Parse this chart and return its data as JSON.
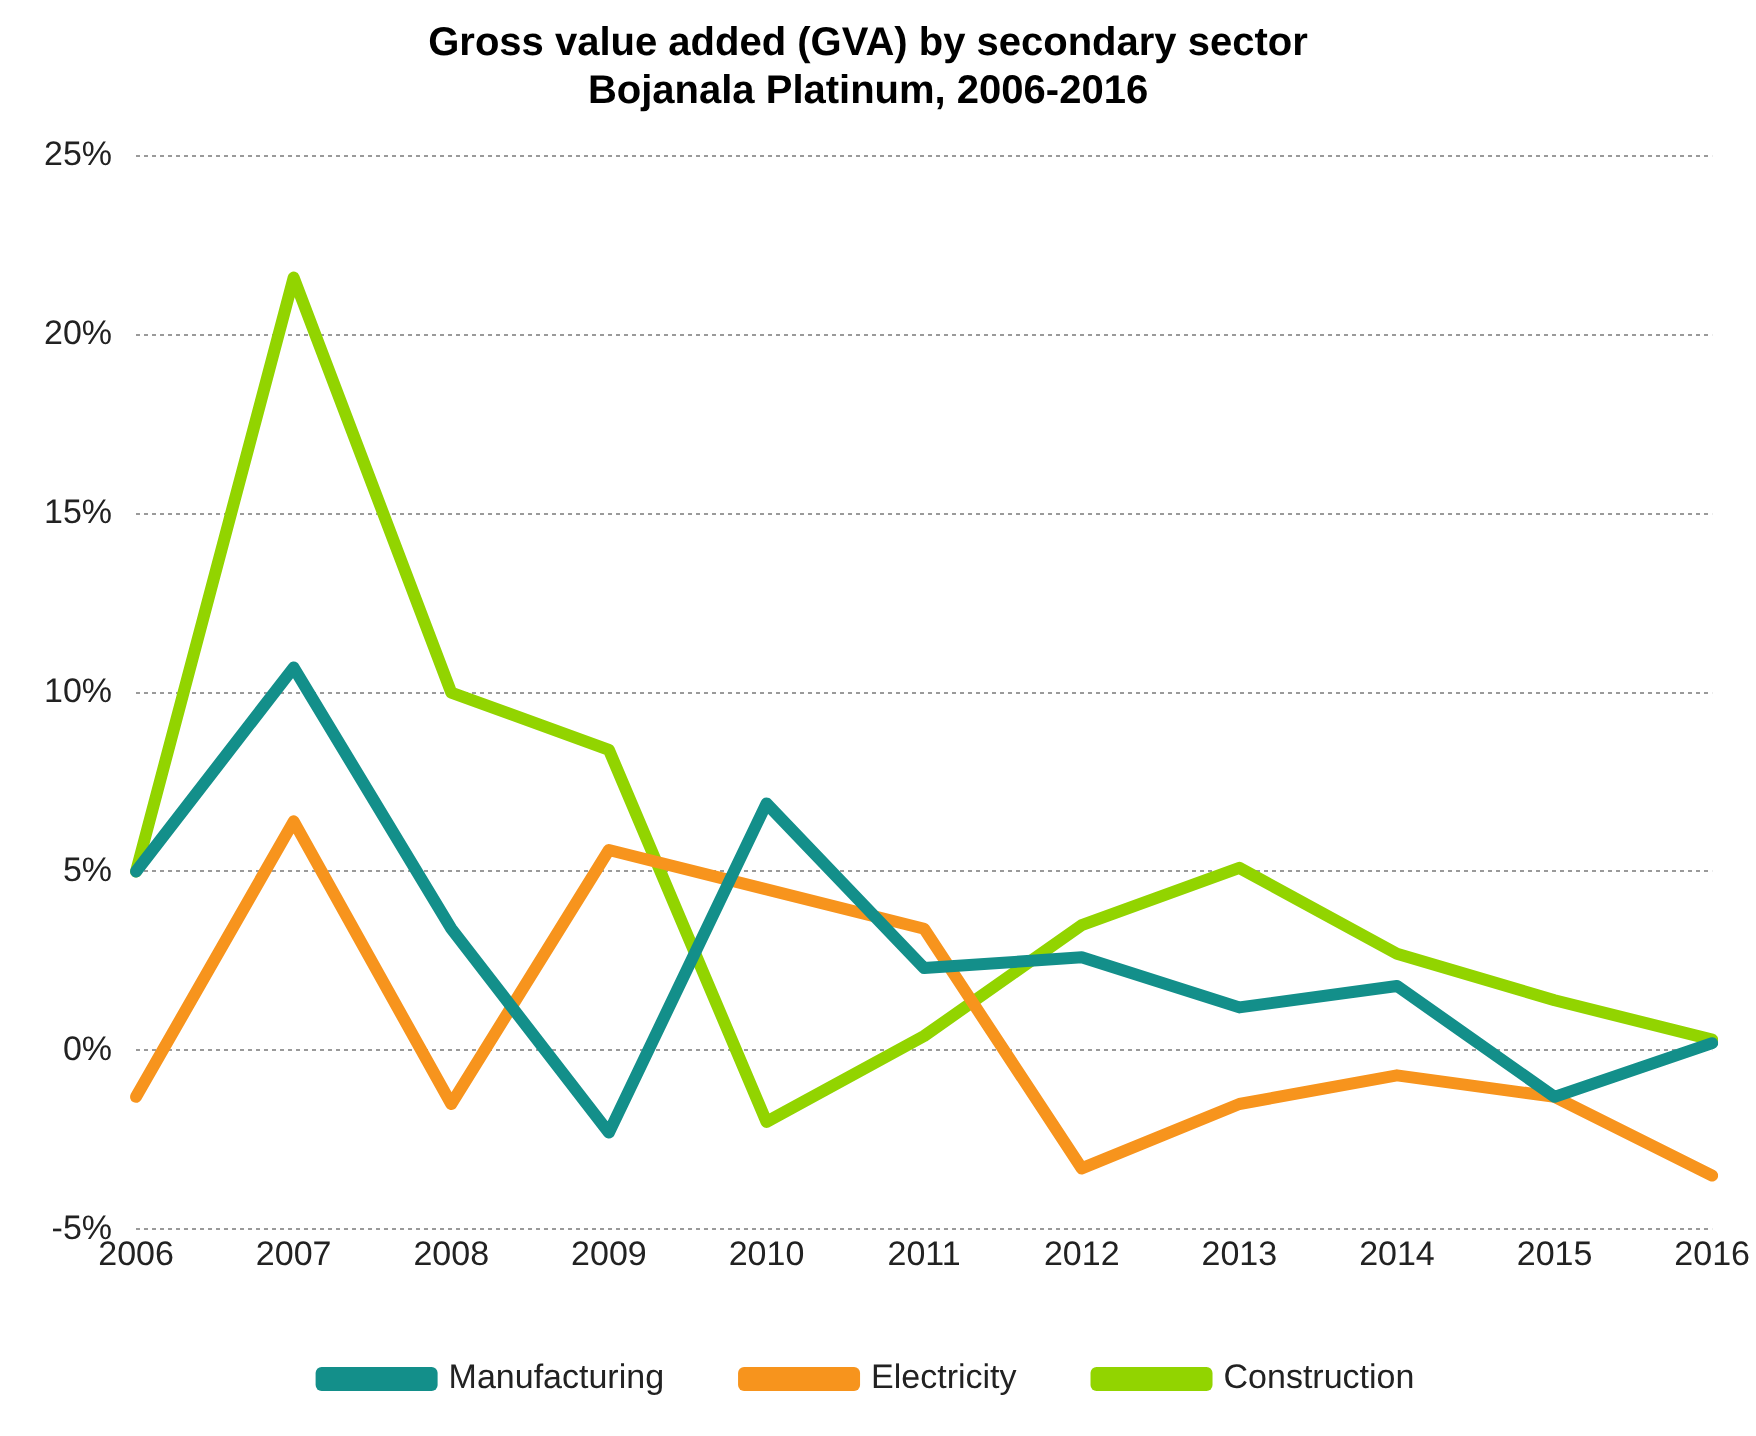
{
  "chart_data": {
    "type": "line",
    "title": "Gross value added (GVA) by secondary sector\nBojanala Platinum, 2006-2016",
    "categories": [
      "2006",
      "2007",
      "2008",
      "2009",
      "2010",
      "2011",
      "2012",
      "2013",
      "2014",
      "2015",
      "2016"
    ],
    "series": [
      {
        "name": "Manufacturing",
        "color": "#138f8a",
        "values": [
          5.0,
          10.7,
          3.4,
          -2.3,
          6.9,
          2.3,
          2.6,
          1.2,
          1.8,
          -1.3,
          0.2
        ]
      },
      {
        "name": "Electricity",
        "color": "#f7941d",
        "values": [
          -1.3,
          6.4,
          -1.5,
          5.6,
          4.5,
          3.4,
          -3.3,
          -1.5,
          -0.7,
          -1.3,
          -3.5
        ]
      },
      {
        "name": "Construction",
        "color": "#92d400",
        "values": [
          5.0,
          21.6,
          10.0,
          8.4,
          -2.0,
          0.4,
          3.5,
          5.1,
          2.7,
          1.4,
          0.3
        ]
      }
    ],
    "ylim": [
      -5,
      25
    ],
    "yticks": [
      {
        "value": -5,
        "label": "-5%"
      },
      {
        "value": 0,
        "label": "0%"
      },
      {
        "value": 5,
        "label": "5%"
      },
      {
        "value": 10,
        "label": "10%"
      },
      {
        "value": 15,
        "label": "15%"
      },
      {
        "value": 20,
        "label": "20%"
      },
      {
        "value": 25,
        "label": "25%"
      }
    ],
    "grid": "y",
    "legend": "bottom",
    "marker": "none",
    "line_style": "solid"
  }
}
